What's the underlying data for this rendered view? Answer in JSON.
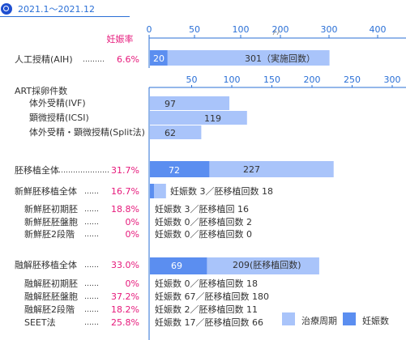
{
  "period": "2021.1～2021.12",
  "rate_header": "妊娠率",
  "legend": {
    "treatment": "治療周期",
    "pregnancy": "妊娠数"
  },
  "colors": {
    "treatment": "#a9c4fa",
    "pregnancy": "#5b8ef0",
    "axis": "#2a6fd6",
    "rate": "#e6197b"
  },
  "chart_data": [
    {
      "type": "bar",
      "axis": {
        "ticks": [
          0,
          50,
          100,
          200,
          300,
          400
        ],
        "break_between": [
          100,
          200
        ]
      },
      "rows": [
        {
          "label": "人工授精(AIH)",
          "dots": "………",
          "rate": "6.6%",
          "pregnancy": 20,
          "treatment": 301,
          "pregnancy_label": "20",
          "treatment_label": "301（実施回数）"
        }
      ]
    },
    {
      "type": "bar",
      "axis": {
        "ticks": [
          50,
          100,
          150,
          200,
          250,
          300
        ]
      },
      "section": "ART採卵件数",
      "rows": [
        {
          "label": "体外受精(IVF)",
          "treatment": 97,
          "treatment_label": "97"
        },
        {
          "label": "顕微授精(ICSI)",
          "treatment": 119,
          "treatment_label": "119"
        },
        {
          "label": "体外受精・顕微授精(Split法)",
          "treatment": 62,
          "treatment_label": "62"
        }
      ]
    },
    {
      "type": "bar",
      "groups": [
        {
          "label": "胚移植全体",
          "dots": "…………………",
          "rate": "31.7%",
          "pregnancy": 72,
          "treatment": 227,
          "pregnancy_label": "72",
          "treatment_label": "227",
          "rows": []
        },
        {
          "label": "新鮮胚移植全体",
          "dots": "……",
          "rate": "16.7%",
          "pregnancy": 3,
          "treatment": 18,
          "summary": "妊娠数 3／胚移植回数 18",
          "rows": [
            {
              "label": "新鮮胚初期胚",
              "dots": "……",
              "rate": "18.8%",
              "summary": "妊娠数 3／胚移植回 16"
            },
            {
              "label": "新鮮胚胚盤胞",
              "dots": "……",
              "rate": "0%",
              "summary": "妊娠数 0／胚移植回数 2"
            },
            {
              "label": "新鮮胚2段階",
              "dots": "……",
              "rate": "0%",
              "summary": "妊娠数 0／胚移植回数 0"
            }
          ]
        },
        {
          "label": "融解胚移植全体",
          "dots": "……",
          "rate": "33.0%",
          "pregnancy": 69,
          "treatment": 209,
          "pregnancy_label": "69",
          "treatment_label": "209(胚移植回数)",
          "rows": [
            {
              "label": "融解胚初期胚",
              "dots": "……",
              "rate": "0%",
              "summary": "妊娠数 0／胚移植回数 18"
            },
            {
              "label": "融解胚胚盤胞",
              "dots": "……",
              "rate": "37.2%",
              "summary": "妊娠数 67／胚移植回数 180"
            },
            {
              "label": "融解胚2段階",
              "dots": "……",
              "rate": "18.2%",
              "summary": "妊娠数 2／胚移植回数 11"
            },
            {
              "label": "SEET法",
              "dots": "……",
              "rate": "25.8%",
              "summary": "妊娠数 17／胚移植回数 66"
            }
          ]
        }
      ]
    }
  ]
}
